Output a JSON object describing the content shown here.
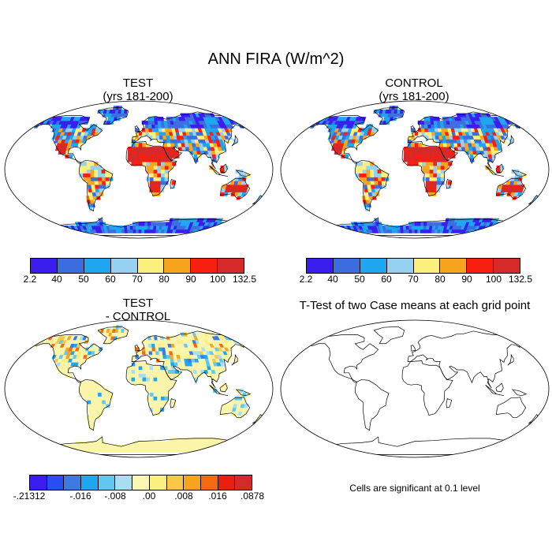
{
  "main_title": "ANN FIRA (W/m^2)",
  "panels": {
    "test": {
      "title": "TEST",
      "subtitle": "(yrs 181-200)"
    },
    "control": {
      "title": "CONTROL",
      "subtitle": "(yrs 181-200)"
    },
    "diff": {
      "title": "TEST",
      "subtitle": "- CONTROL"
    },
    "ttest": {
      "title": "T-Test of two Case means at each grid point",
      "note": "Cells are significant at 0.1 level"
    }
  },
  "legend_abs": {
    "labels": [
      "2.2",
      "40",
      "50",
      "60",
      "70",
      "80",
      "90",
      "100",
      "132.5"
    ],
    "colors": [
      "#3b1df0",
      "#3c6ee0",
      "#1ea6f0",
      "#96d2f0",
      "#fbf07e",
      "#f7a51e",
      "#f81e10",
      "#d42a2a"
    ]
  },
  "legend_diff": {
    "labels": [
      "-.21312",
      "-.016",
      "-.008",
      ".00",
      ".008",
      ".016",
      ".0878"
    ],
    "colors": [
      "#3b1df0",
      "#2a4ef2",
      "#3c7ae0",
      "#1ea6f0",
      "#63c8f0",
      "#a8ddf2",
      "#fbf7b4",
      "#fbf07e",
      "#f9c84a",
      "#f7a51e",
      "#f56a10",
      "#e81e10",
      "#d42a2a"
    ]
  },
  "map_colors": {
    "land_diff": "#fbf5aa",
    "ocean": "#ffffff",
    "coast": "#000000"
  }
}
